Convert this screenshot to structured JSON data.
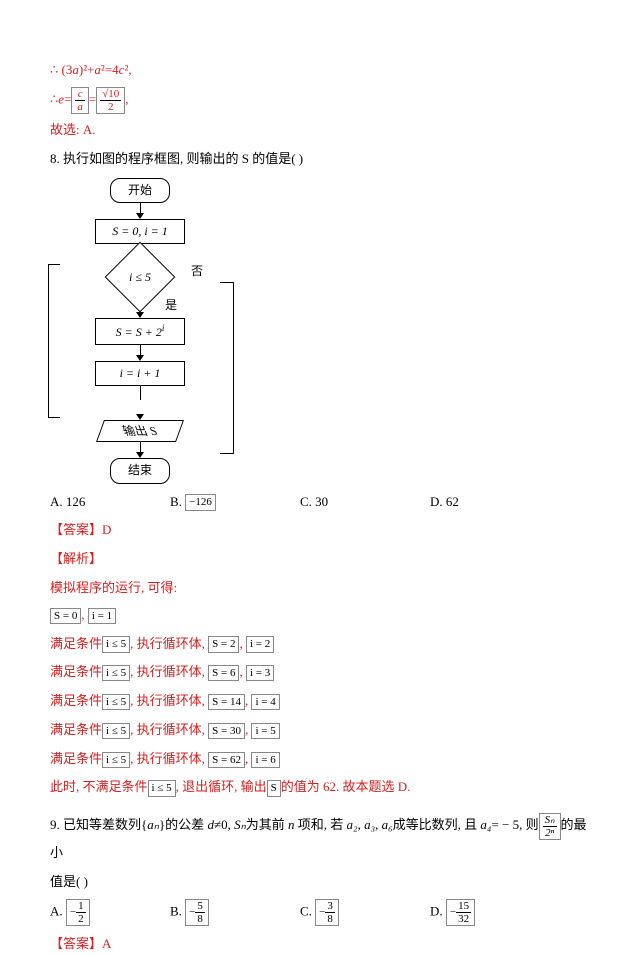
{
  "q7": {
    "line1_prefix": "∴ (3",
    "line1_mid": ")²+",
    "line1_mid2": "²=4",
    "line1_end": "²,",
    "a": "a",
    "c": "c",
    "line2_prefix": "∴",
    "e": "e",
    "eq": "=",
    "frac_c": "c",
    "frac_a": "a",
    "root10": "√10",
    "two": "2",
    "comma": ",",
    "line3": "故选:  A."
  },
  "q8": {
    "num": "8.",
    "stem": "执行如图的程序框图, 则输出的 S 的值是(      )",
    "fc": {
      "start": "开始",
      "init": "S = 0, i = 1",
      "cond": "i ≤ 5",
      "no": "否",
      "yes": "是",
      "step1_left": "S = S + 2",
      "step1_sup": "i",
      "step2": "i = i + 1",
      "output": "输出 S",
      "end": "结束"
    },
    "opts": {
      "A": "A.  126",
      "B_label": "B.",
      "B_box": "−126",
      "C": "C.  30",
      "D": "D.  62"
    },
    "answer_label": "【答案】D",
    "expl_label": "【解析】",
    "expl_intro": "模拟程序的运行, 可得:",
    "s0": "S = 0",
    "i1": "i = 1",
    "sep": ",",
    "row_prefix": "满足条件",
    "cond_box": "i ≤ 5",
    "row_mid": ", 执行循环体,",
    "rows": [
      {
        "s": "S = 2",
        "i": "i = 2"
      },
      {
        "s": "S = 6",
        "i": "i = 3"
      },
      {
        "s": "S = 14",
        "i": "i = 4"
      },
      {
        "s": "S = 30",
        "i": "i = 5"
      },
      {
        "s": "S = 62",
        "i": "i = 6"
      }
    ],
    "final_prefix": "此时, 不满足条件",
    "final_mid1": ", 退出循环, 输出",
    "final_S": "S",
    "final_mid2": "的值为 62.  故本题选 D."
  },
  "q9": {
    "num": "9.",
    "stem_1": "已知等差数列{",
    "an": "aₙ",
    "stem_2": "}的公差 ",
    "d": "d",
    "stem_3": "≠0, ",
    "Sn": "Sₙ",
    "stem_4": "为其前 ",
    "n": "n",
    "stem_5": " 项和, 若 ",
    "a2": "a₂",
    "a3": "a₃",
    "a6": "a₆",
    "stem_6": "成等比数列, 且 ",
    "a4": "a₄",
    "stem_7": "= − 5, 则",
    "frac_top": "Sₙ",
    "frac_bot": "2ⁿ",
    "stem_8": "的最小",
    "stem_9": "值是(      )",
    "opts": {
      "A_label": "A.",
      "A_num": "1",
      "A_den": "2",
      "B_label": "B.",
      "B_num": "5",
      "B_den": "8",
      "C_label": "C.",
      "C_num": "3",
      "C_den": "8",
      "D_label": "D.",
      "D_num": "15",
      "D_den": "32"
    },
    "answer_label": "【答案】A"
  },
  "colors": {
    "red": "#d62020",
    "black": "#000000",
    "border": "#888888",
    "bg": "#ffffff"
  }
}
